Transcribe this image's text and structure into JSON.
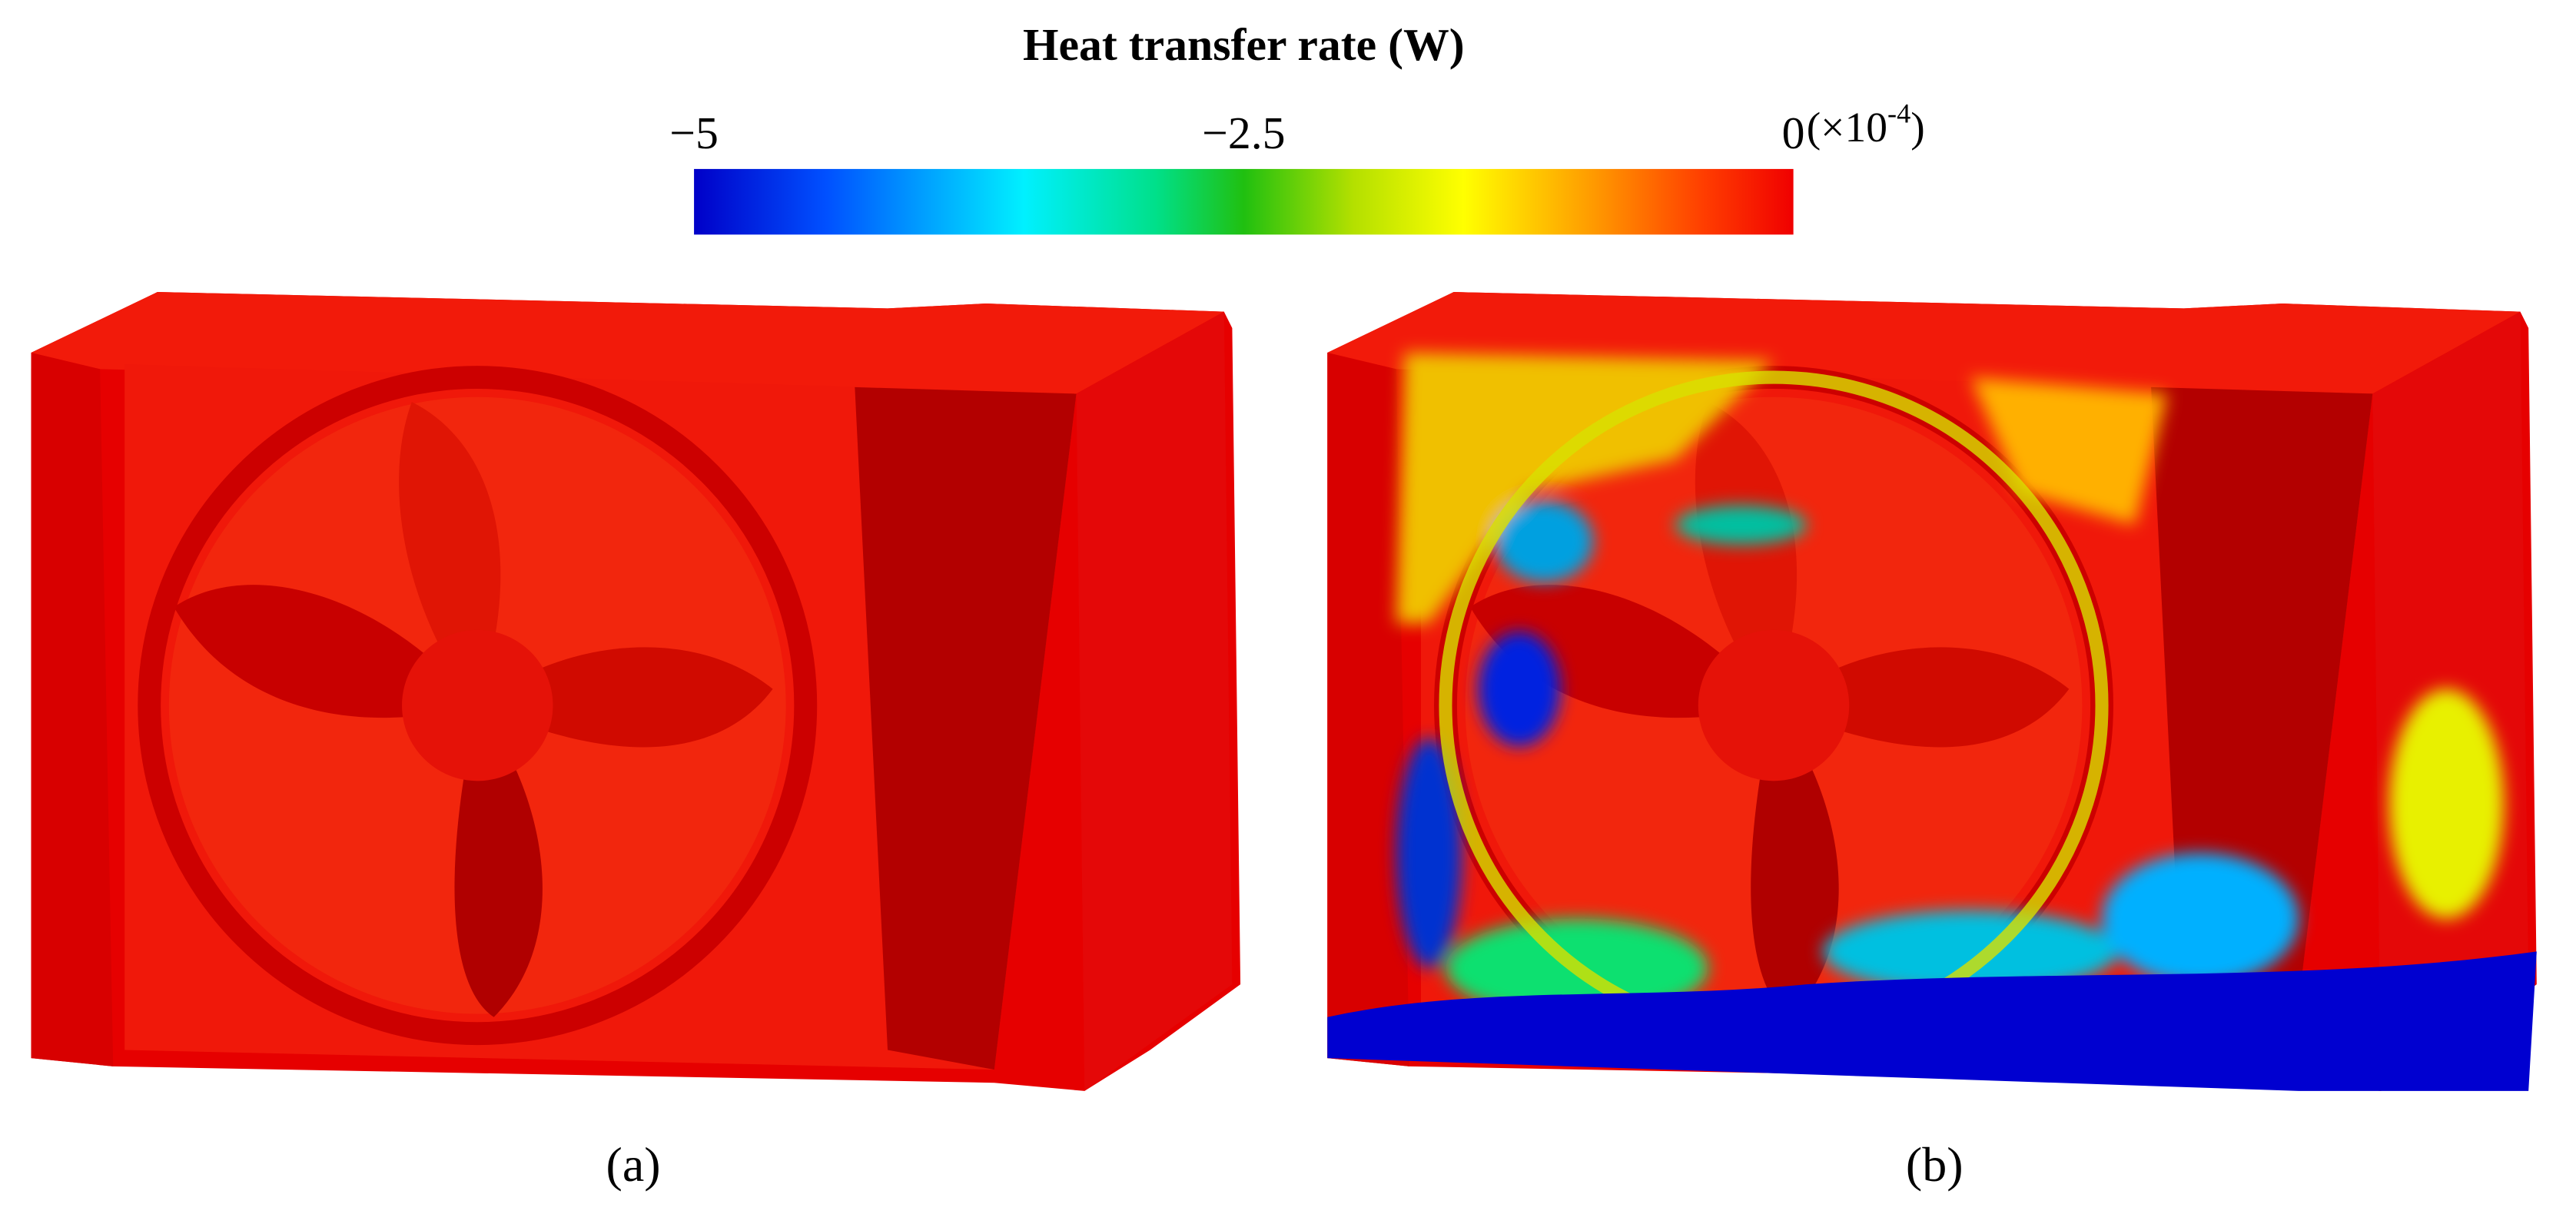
{
  "colorbar": {
    "title": "Heat transfer rate (W)",
    "lim": [
      -5,
      0
    ],
    "ticks": [
      {
        "value": -5,
        "label": "−5"
      },
      {
        "value": -2.5,
        "label": "−2.5"
      },
      {
        "value": 0,
        "label": "0"
      }
    ],
    "multiplier": "(×10",
    "exponent": "-4",
    "multiplier_end": ")"
  },
  "panels": [
    {
      "label": "(a)"
    },
    {
      "label": "(b)"
    }
  ]
}
